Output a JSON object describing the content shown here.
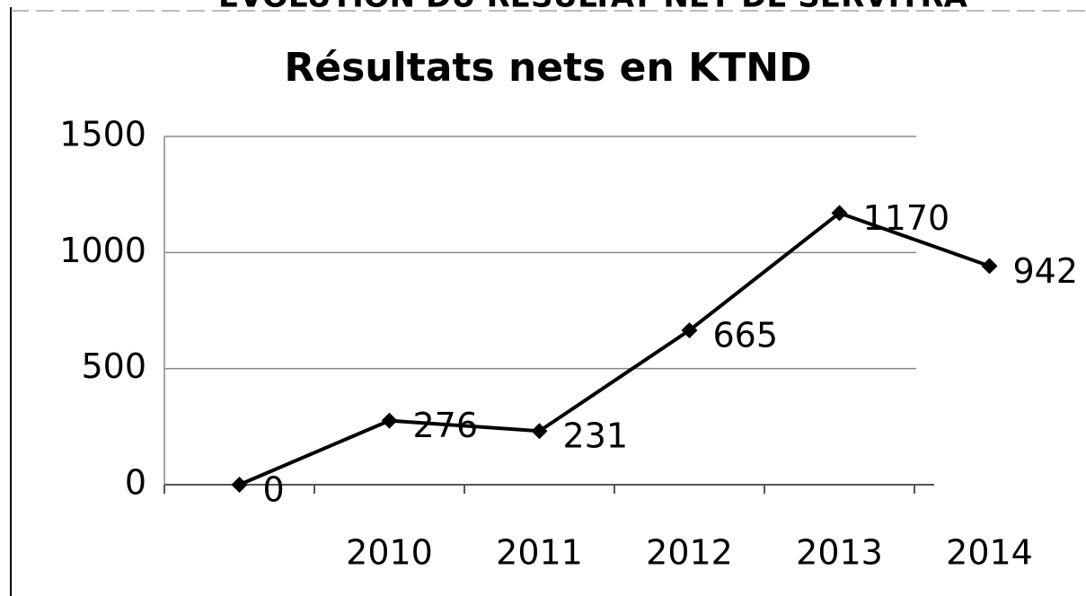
{
  "chart_data": {
    "type": "line",
    "supertitle": "EVOLUTION DU RESULTAT NET DE SERVITRA",
    "title": "Résultats nets en KTND",
    "categories": [
      null,
      "2010",
      "2011",
      "2012",
      "2013",
      "2014"
    ],
    "series": [
      {
        "name": "Résultats nets en KTND",
        "color": "#000000",
        "values": [
          0,
          276,
          231,
          665,
          1170,
          942
        ]
      }
    ],
    "ylim": [
      0,
      1500
    ],
    "yticks": [
      0,
      500,
      1000,
      1500
    ],
    "grid": true,
    "legend": false
  }
}
